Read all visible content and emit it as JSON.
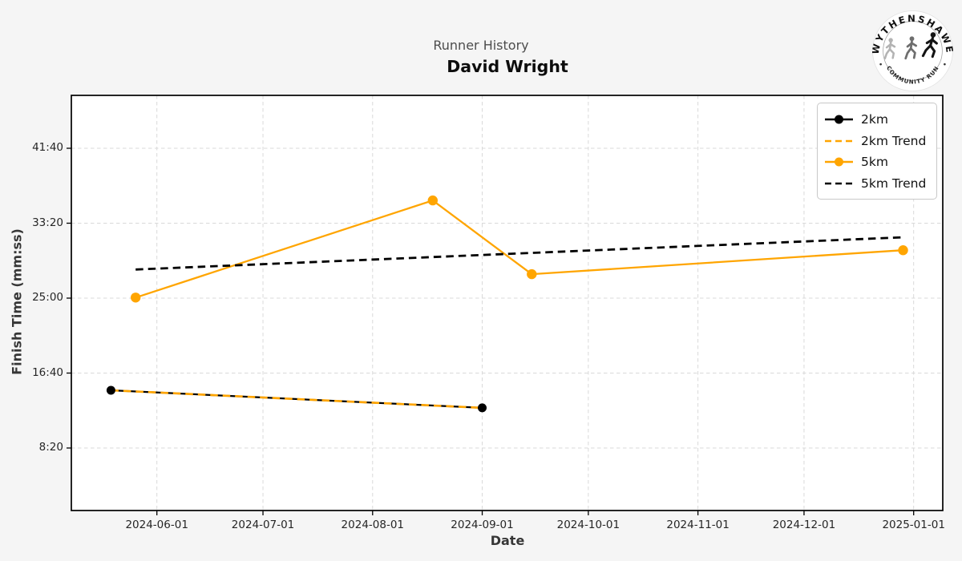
{
  "header": {
    "suptitle": "Runner History",
    "title": "David Wright"
  },
  "logo": {
    "arc_top": "WYTHENSHAWE",
    "arc_bottom": "COMMUNITY RUN"
  },
  "chart_data": {
    "type": "line",
    "title": "Runner History",
    "subtitle": "David Wright",
    "xlabel": "Date",
    "ylabel": "Finish Time (mm:ss)",
    "x_ticks": [
      "2024-06-01",
      "2024-07-01",
      "2024-08-01",
      "2024-09-01",
      "2024-10-01",
      "2024-11-01",
      "2024-12-01",
      "2025-01-01"
    ],
    "y_ticks": [
      "8:20",
      "16:40",
      "25:00",
      "33:20",
      "41:40"
    ],
    "xlim": [
      "2024-05-08",
      "2025-01-09"
    ],
    "ylim_mmss": [
      "1:10",
      "47:25"
    ],
    "grid": true,
    "legend_position": "upper right",
    "colors": {
      "orange": "#FFA500",
      "black": "#000000",
      "grid": "#d9d9d9",
      "plot_bg": "#ffffff",
      "fig_bg": "#f5f5f5"
    },
    "series": [
      {
        "name": "2km",
        "color": "#000000",
        "dash": false,
        "markers": true,
        "marker_radius": 5.5,
        "width": 2.2,
        "points": [
          [
            "2024-05-19",
            "14:45"
          ],
          [
            "2024-09-01",
            "12:48"
          ]
        ]
      },
      {
        "name": "2km Trend",
        "color": "#FFA500",
        "dash": true,
        "markers": false,
        "marker_radius": 0,
        "width": 2.7,
        "points": [
          [
            "2024-05-19",
            "14:45"
          ],
          [
            "2024-09-01",
            "12:48"
          ]
        ]
      },
      {
        "name": "5km",
        "color": "#FFA500",
        "dash": false,
        "markers": true,
        "marker_radius": 6.2,
        "width": 2.3,
        "points": [
          [
            "2024-05-26",
            "25:04"
          ],
          [
            "2024-08-18",
            "35:52"
          ],
          [
            "2024-09-15",
            "27:40"
          ],
          [
            "2024-12-29",
            "30:20"
          ]
        ]
      },
      {
        "name": "5km Trend",
        "color": "#000000",
        "dash": true,
        "markers": false,
        "marker_radius": 0,
        "width": 2.8,
        "points": [
          [
            "2024-05-26",
            "28:11"
          ],
          [
            "2024-12-29",
            "31:46"
          ]
        ]
      }
    ]
  }
}
